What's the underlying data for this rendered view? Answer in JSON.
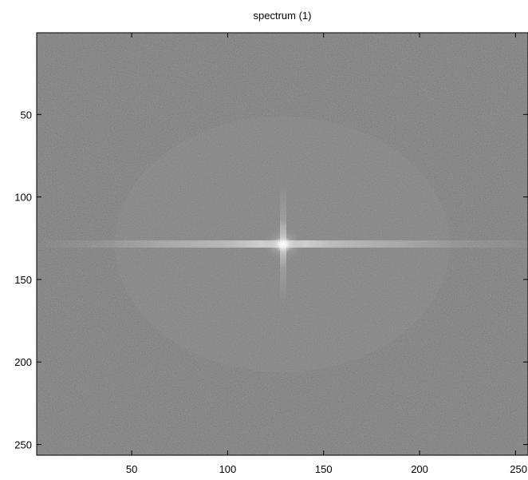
{
  "chart_data": {
    "type": "heatmap",
    "title": "spectrum (1)",
    "xlabel": "",
    "ylabel": "",
    "image_size": [
      256,
      256
    ],
    "xlim": [
      0.5,
      256.5
    ],
    "ylim": [
      0.5,
      256.5
    ],
    "y_reversed": true,
    "colormap": "gray",
    "xticks": [
      50,
      100,
      150,
      200,
      250
    ],
    "xtick_labels": [
      "50",
      "100",
      "150",
      "200",
      "250"
    ],
    "yticks": [
      50,
      100,
      150,
      200,
      250
    ],
    "ytick_labels": [
      "50",
      "100",
      "150",
      "200",
      "250"
    ],
    "center_peak": [
      129,
      129
    ],
    "grid": false
  }
}
